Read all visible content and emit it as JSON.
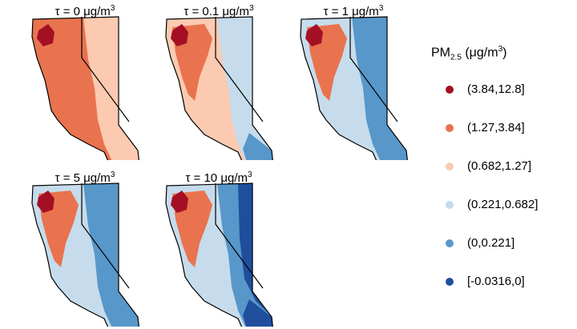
{
  "colors": {
    "c1": "#a50f24",
    "c2": "#e9734f",
    "c3": "#fbcab1",
    "c4": "#c6dcec",
    "c5": "#5897c9",
    "c6": "#1f4e9d",
    "border": "#000000"
  },
  "panels": [
    {
      "tau_label": "τ = 0",
      "unit": "μg/m",
      "unit_exp": "3",
      "fill_tone": "c2",
      "east_tone": "c3",
      "far_tone": "c3",
      "se_tone": "c3",
      "core_tone": "c1"
    },
    {
      "tau_label": "τ = 0.1",
      "unit": "μg/m",
      "unit_exp": "3",
      "fill_tone": "c3",
      "east_tone": "c4",
      "far_tone": "c4",
      "se_tone": "c5",
      "core_tone": "c1"
    },
    {
      "tau_label": "τ = 1",
      "unit": "μg/m",
      "unit_exp": "3",
      "fill_tone": "c4",
      "east_tone": "c5",
      "far_tone": "c5",
      "se_tone": "c5",
      "core_tone": "c1"
    },
    {
      "tau_label": "τ = 5",
      "unit": "μg/m",
      "unit_exp": "3",
      "fill_tone": "c4",
      "east_tone": "c5",
      "far_tone": "c5",
      "se_tone": "c5",
      "core_tone": "c1"
    },
    {
      "tau_label": "τ = 10",
      "unit": "μg/m",
      "unit_exp": "3",
      "fill_tone": "c4",
      "east_tone": "c5",
      "far_tone": "c6",
      "se_tone": "c6",
      "core_tone": "c1"
    }
  ],
  "legend": {
    "title_main": "PM",
    "title_sub": "2.5",
    "title_unit": " (μg/m",
    "title_exp": "3",
    "title_close": ")",
    "items": [
      {
        "label": "(3.84,12.8]",
        "tone": "c1"
      },
      {
        "label": "(1.27,3.84]",
        "tone": "c2"
      },
      {
        "label": "(0.682,1.27]",
        "tone": "c3"
      },
      {
        "label": "(0.221,0.682]",
        "tone": "c4"
      },
      {
        "label": "(0,0.221]",
        "tone": "c5"
      },
      {
        "label": "[-0.0316,0]",
        "tone": "c6"
      }
    ]
  }
}
